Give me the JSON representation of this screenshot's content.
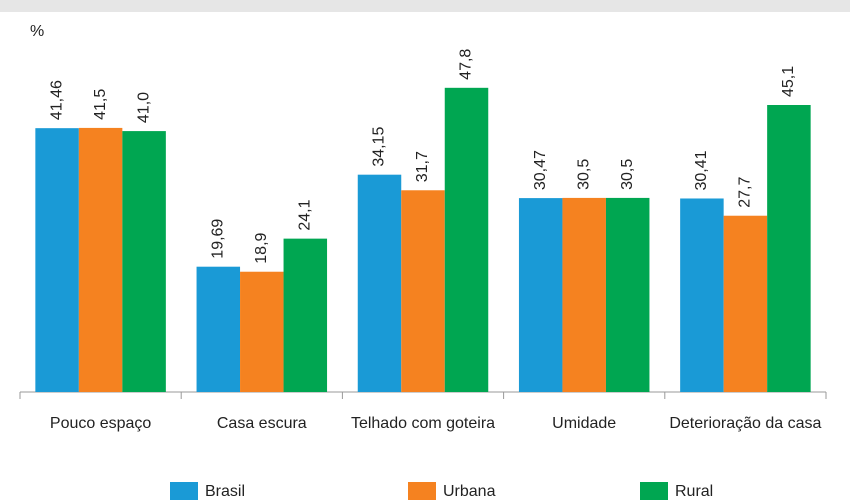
{
  "chart_data": {
    "type": "bar",
    "y_label": "%",
    "categories": [
      "Pouco espaço",
      "Casa escura",
      "Telhado com goteira",
      "Umidade",
      "Deterioração da casa"
    ],
    "series": [
      {
        "name": "Brasil",
        "color": "#1a9ad6",
        "values": [
          41.46,
          19.69,
          34.15,
          30.47,
          30.41
        ],
        "value_labels": [
          "41,46",
          "19,69",
          "34,15",
          "30,47",
          "30,41"
        ]
      },
      {
        "name": "Urbana",
        "color": "#f58220",
        "values": [
          41.5,
          18.9,
          31.7,
          30.5,
          27.7
        ],
        "value_labels": [
          "41,5",
          "18,9",
          "31,7",
          "30,5",
          "27,7"
        ]
      },
      {
        "name": "Rural",
        "color": "#00a651",
        "values": [
          41.0,
          24.1,
          47.8,
          30.5,
          45.1
        ],
        "value_labels": [
          "41,0",
          "24,1",
          "47,8",
          "30,5",
          "45,1"
        ]
      }
    ],
    "ylim": [
      0,
      55
    ]
  }
}
